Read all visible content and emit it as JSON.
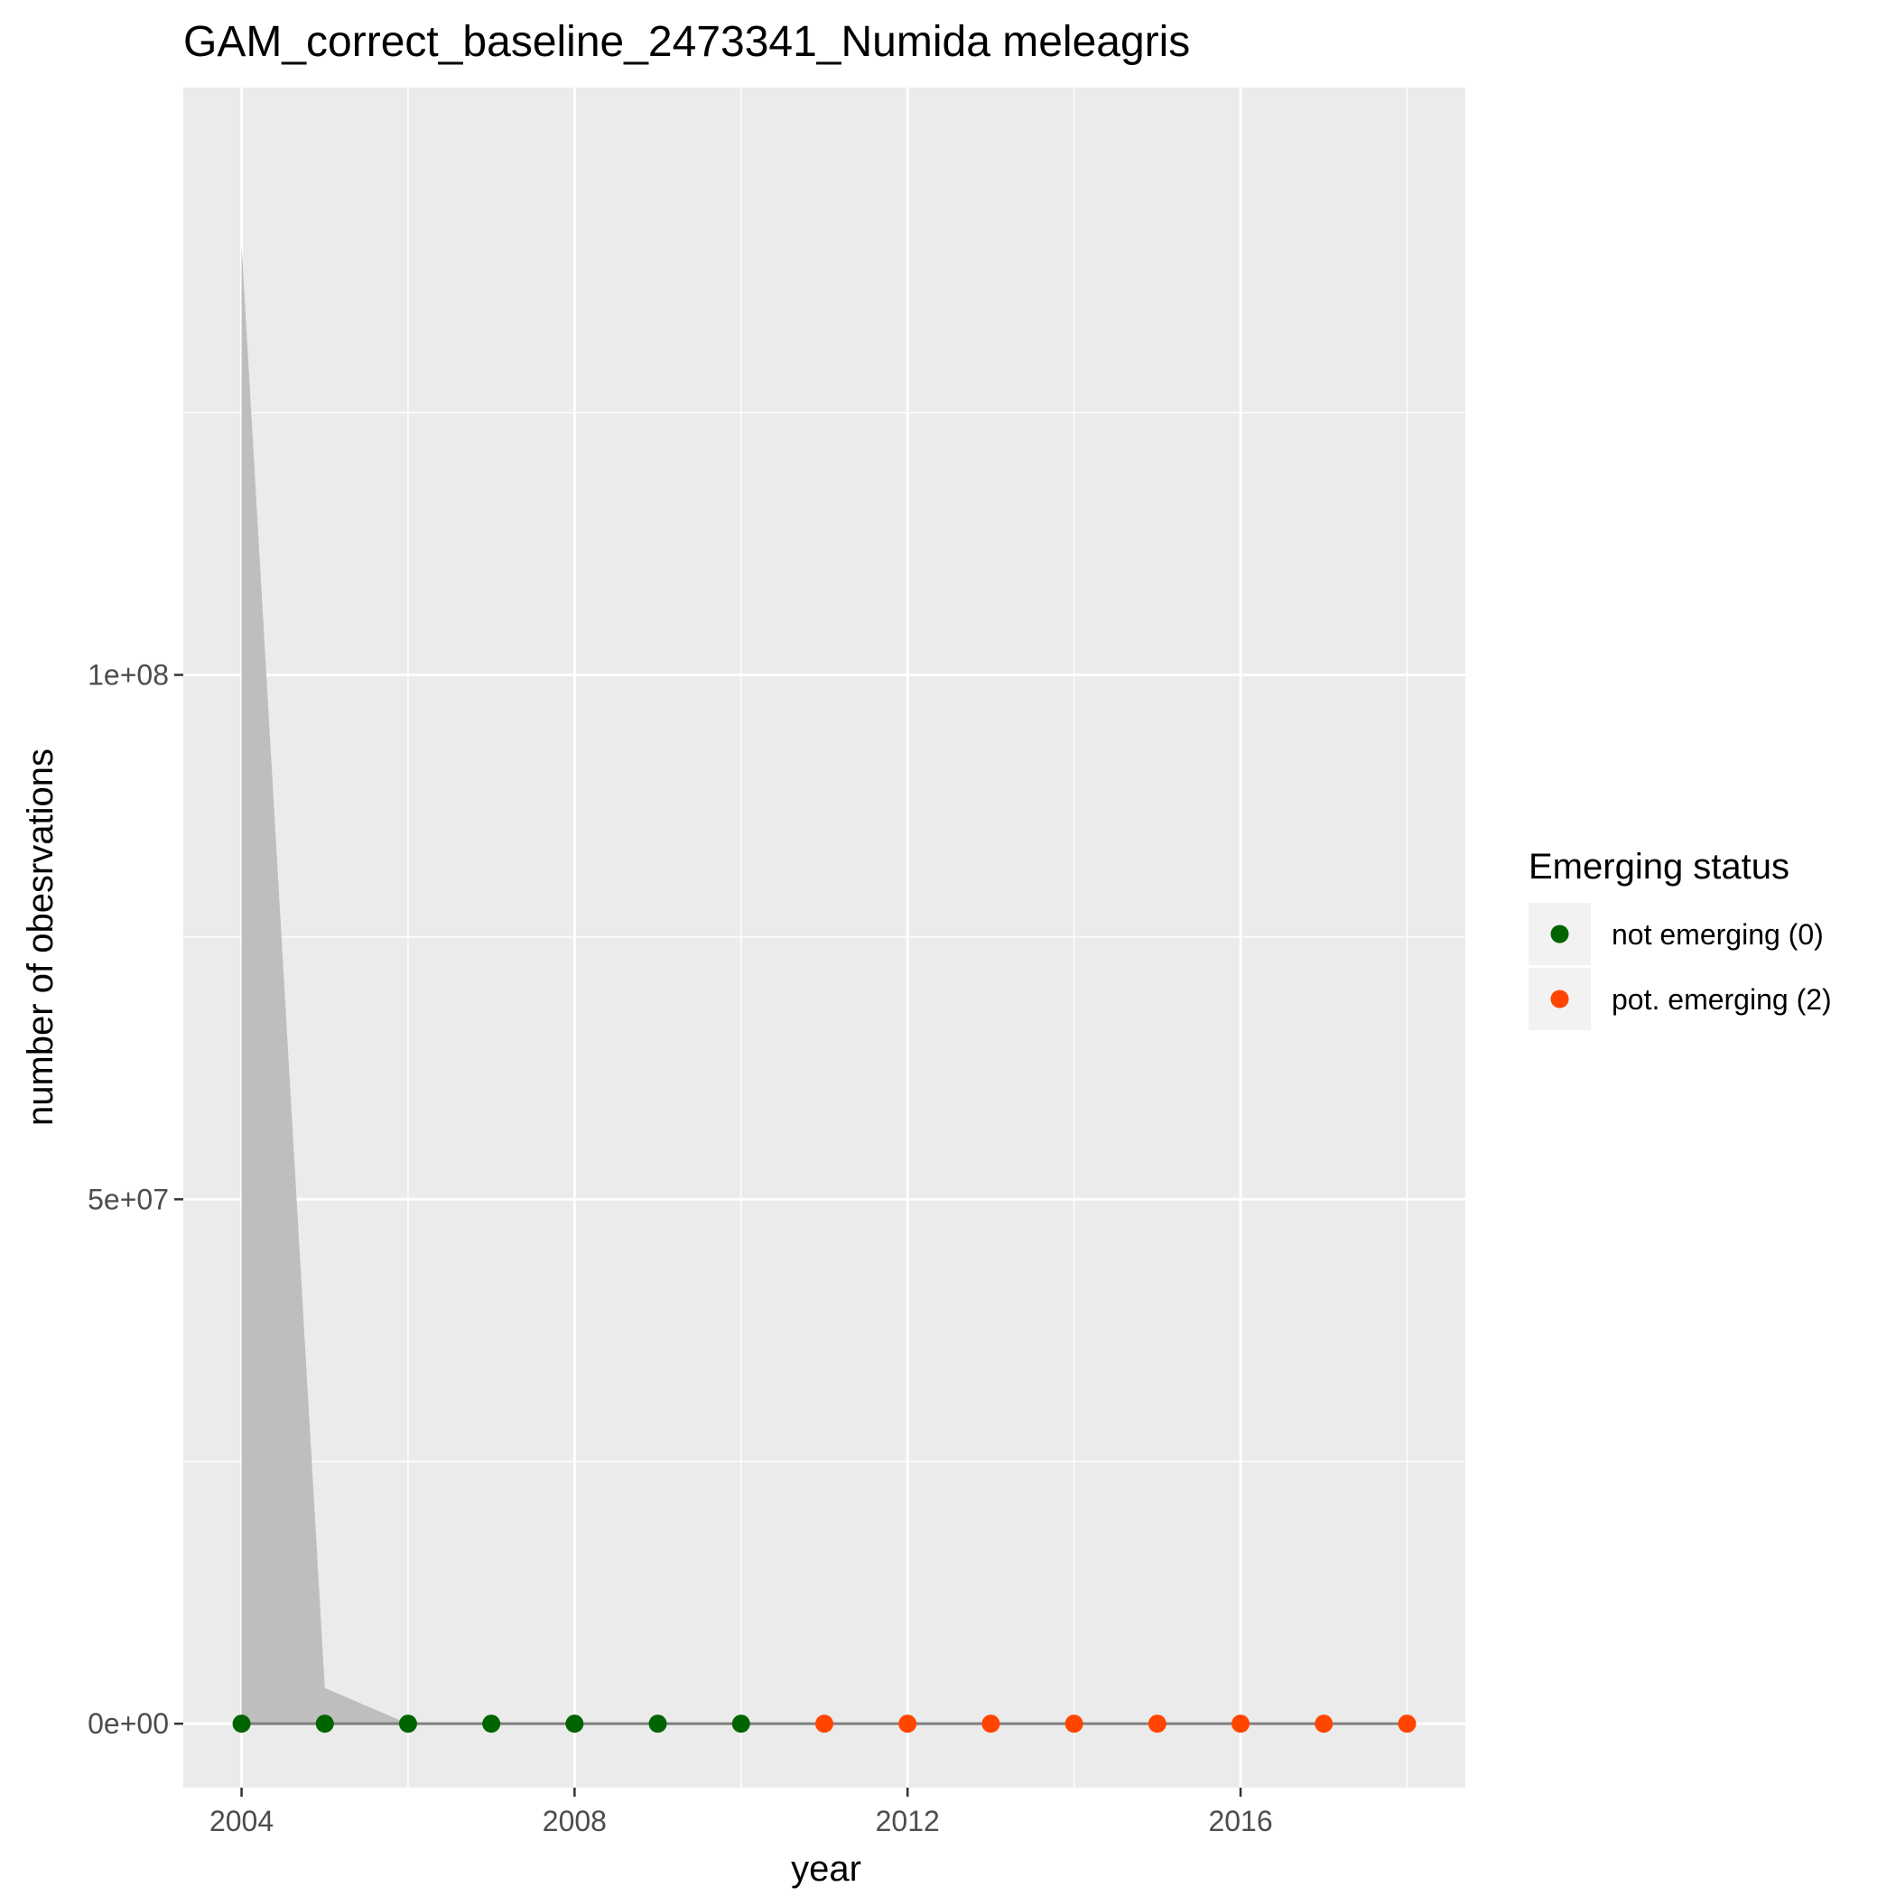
{
  "chart_data": {
    "type": "scatter",
    "title": "GAM_correct_baseline_2473341_Numida meleagris",
    "xlabel": "year",
    "ylabel": "number of obesrvations",
    "xlim": [
      2003.3,
      2018.7
    ],
    "ylim": [
      -6100000,
      156000000
    ],
    "x_ticks": [
      2004,
      2008,
      2012,
      2016
    ],
    "y_ticks": [
      0,
      50000000,
      100000000
    ],
    "y_tick_labels": [
      "0e+00",
      "5e+07",
      "1e+08"
    ],
    "y_minor_ticks": [
      25000000,
      75000000,
      125000000
    ],
    "x_minor_ticks": [
      2006,
      2010,
      2014,
      2018
    ],
    "grid": true,
    "legend_position": "right",
    "legend": {
      "title": "Emerging status",
      "items": [
        {
          "label": "not emerging (0)",
          "color": "#006400"
        },
        {
          "label": "pot. emerging (2)",
          "color": "#FF4500"
        }
      ]
    },
    "colors": {
      "panel_background": "#EBEBEB",
      "grid": "#FFFFFF",
      "ribbon": "#BEBEBE",
      "fit_line": "#7F7F7F"
    },
    "fit_line": {
      "x": [
        2004,
        2005,
        2006,
        2007,
        2008,
        2009,
        2010,
        2011,
        2012,
        2013,
        2014,
        2015,
        2016,
        2017,
        2018
      ],
      "y": [
        0,
        0,
        0,
        0,
        0,
        0,
        0,
        0,
        0,
        0,
        0,
        0,
        0,
        0,
        0
      ]
    },
    "ribbon": {
      "x": [
        2004,
        2005,
        2006,
        2007,
        2008,
        2009,
        2010,
        2011,
        2012,
        2013,
        2014,
        2015,
        2016,
        2017,
        2018
      ],
      "ymin": [
        0,
        0,
        0,
        0,
        0,
        0,
        0,
        0,
        0,
        0,
        0,
        0,
        0,
        0,
        0
      ],
      "ymax": [
        141000000,
        3400000,
        0,
        0,
        0,
        0,
        0,
        0,
        0,
        0,
        0,
        0,
        0,
        0,
        0
      ]
    },
    "series": [
      {
        "name": "not emerging (0)",
        "color": "#006400",
        "x": [
          2004,
          2005,
          2006,
          2007,
          2008,
          2009,
          2010
        ],
        "y": [
          0,
          0,
          0,
          0,
          0,
          0,
          0
        ]
      },
      {
        "name": "pot. emerging (2)",
        "color": "#FF4500",
        "x": [
          2011,
          2012,
          2013,
          2014,
          2015,
          2016,
          2017,
          2018
        ],
        "y": [
          0,
          0,
          0,
          0,
          0,
          0,
          0,
          0
        ]
      }
    ]
  }
}
